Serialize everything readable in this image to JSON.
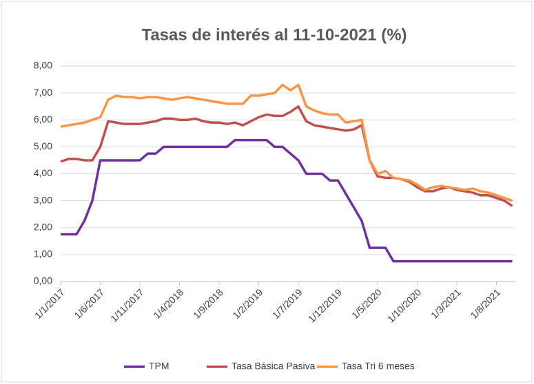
{
  "chart_data": {
    "type": "line",
    "title": "Tasas de interés al 11-10-2021 (%)",
    "categories": [
      "1/1/2017",
      null,
      null,
      null,
      null,
      "1/6/2017",
      null,
      null,
      null,
      null,
      "1/11/2017",
      null,
      null,
      null,
      null,
      "1/4/2018",
      null,
      null,
      null,
      null,
      "1/9/2018",
      null,
      null,
      null,
      null,
      "1/2/2019",
      null,
      null,
      null,
      null,
      "1/7/2019",
      null,
      null,
      null,
      null,
      "1/12/2019",
      null,
      null,
      null,
      null,
      "1/5/2020",
      null,
      null,
      null,
      null,
      "1/10/2020",
      null,
      null,
      null,
      null,
      "1/3/2021",
      null,
      null,
      null,
      null,
      "1/8/2021",
      null,
      null
    ],
    "series": [
      {
        "name": "TPM",
        "color": "#7030a0",
        "values": [
          1.75,
          1.75,
          1.75,
          2.25,
          3.0,
          4.5,
          4.5,
          4.5,
          4.5,
          4.5,
          4.5,
          4.75,
          4.75,
          5,
          5,
          5,
          5,
          5,
          5,
          5,
          5,
          5,
          5.25,
          5.25,
          5.25,
          5.25,
          5.25,
          5,
          5,
          4.75,
          4.5,
          4,
          4,
          4,
          3.75,
          3.75,
          3.25,
          2.75,
          2.25,
          1.25,
          1.25,
          1.25,
          0.75,
          0.75,
          0.75,
          0.75,
          0.75,
          0.75,
          0.75,
          0.75,
          0.75,
          0.75,
          0.75,
          0.75,
          0.75,
          0.75,
          0.75,
          0.75
        ]
      },
      {
        "name": "Tasa Básica Pasiva",
        "color": "#c0504d",
        "values": [
          4.45,
          4.55,
          4.55,
          4.5,
          4.5,
          5.0,
          5.95,
          5.9,
          5.85,
          5.85,
          5.85,
          5.9,
          5.95,
          6.05,
          6.05,
          6.0,
          6.0,
          6.05,
          5.95,
          5.9,
          5.9,
          5.85,
          5.9,
          5.8,
          5.95,
          6.1,
          6.2,
          6.15,
          6.15,
          6.3,
          6.5,
          5.95,
          5.8,
          5.75,
          5.7,
          5.65,
          5.6,
          5.65,
          5.8,
          4.5,
          3.9,
          3.85,
          3.85,
          3.8,
          3.7,
          3.5,
          3.35,
          3.35,
          3.45,
          3.5,
          3.4,
          3.35,
          3.3,
          3.2,
          3.2,
          3.1,
          3.0,
          2.8
        ]
      },
      {
        "name": "Tasa Tri 6 meses",
        "color": "#f79646",
        "values": [
          5.75,
          5.8,
          5.85,
          5.9,
          6.0,
          6.1,
          6.75,
          6.9,
          6.85,
          6.85,
          6.8,
          6.85,
          6.85,
          6.8,
          6.75,
          6.8,
          6.85,
          6.8,
          6.75,
          6.7,
          6.65,
          6.6,
          6.6,
          6.6,
          6.9,
          6.9,
          6.95,
          7.0,
          7.3,
          7.1,
          7.3,
          6.5,
          6.35,
          6.25,
          6.2,
          6.2,
          5.9,
          5.95,
          6.0,
          4.5,
          4.0,
          4.1,
          3.85,
          3.8,
          3.75,
          3.6,
          3.4,
          3.5,
          3.55,
          3.5,
          3.45,
          3.4,
          3.45,
          3.35,
          3.3,
          3.2,
          3.1,
          3.0
        ]
      }
    ],
    "ylim": [
      0,
      8
    ],
    "yticks": [
      {
        "value": 0,
        "label": "0,00"
      },
      {
        "value": 1,
        "label": "1,00"
      },
      {
        "value": 2,
        "label": "2,00"
      },
      {
        "value": 3,
        "label": "3,00"
      },
      {
        "value": 4,
        "label": "4,00"
      },
      {
        "value": 5,
        "label": "5,00"
      },
      {
        "value": 6,
        "label": "6,00"
      },
      {
        "value": 7,
        "label": "7,00"
      },
      {
        "value": 8,
        "label": "8,00"
      }
    ],
    "grid": true,
    "legend": "bottom"
  }
}
